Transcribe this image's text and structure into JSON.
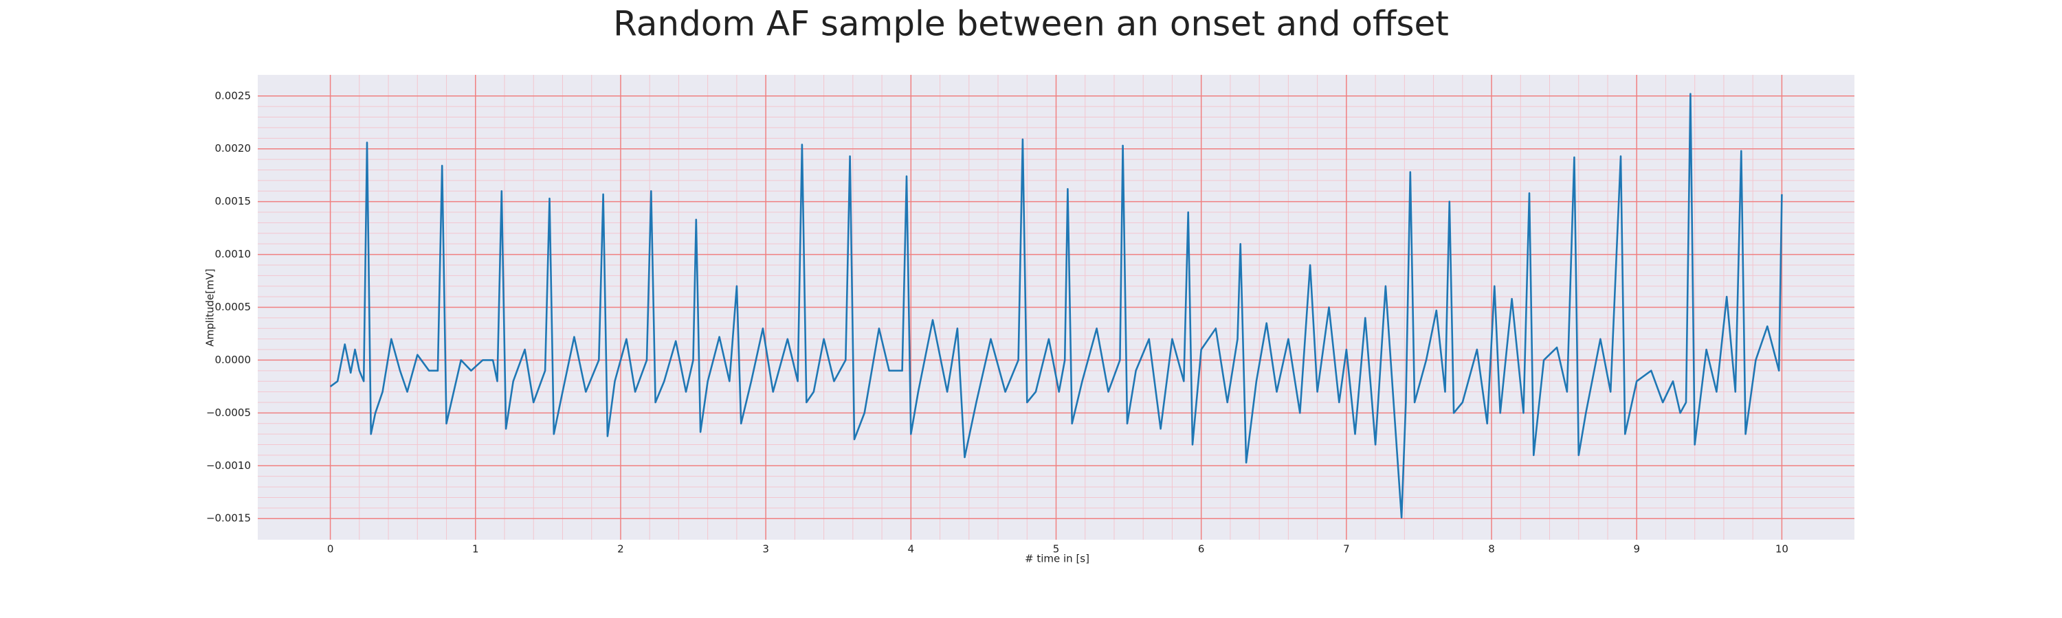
{
  "chart_data": {
    "type": "line",
    "title": "Random AF sample between an onset and offset",
    "xlabel": "# time in [s]",
    "ylabel": "Amplitude[mV]",
    "xlim": [
      -0.5,
      10.5
    ],
    "ylim": [
      -0.0017,
      0.0027
    ],
    "xticks": [
      0,
      1,
      2,
      3,
      4,
      5,
      6,
      7,
      8,
      9,
      10
    ],
    "yticks": [
      {
        "value": -0.0015,
        "label": "−0.0015"
      },
      {
        "value": -0.001,
        "label": "−0.0010"
      },
      {
        "value": -0.0005,
        "label": "−0.0005"
      },
      {
        "value": 0,
        "label": "0.0000"
      },
      {
        "value": 0.0005,
        "label": "0.0005"
      },
      {
        "value": 0.001,
        "label": "0.0010"
      },
      {
        "value": 0.0015,
        "label": "0.0015"
      },
      {
        "value": 0.002,
        "label": "0.0020"
      },
      {
        "value": 0.0025,
        "label": "0.0025"
      }
    ],
    "grid": true,
    "minor_grid": true,
    "background": "#eaeaf2",
    "grid_color": "#f08080",
    "minor_grid_color": "#f3c6cf",
    "series": [
      {
        "name": "AF",
        "color": "#1f77b4",
        "x": [
          0,
          0.05,
          0.1,
          0.14,
          0.17,
          0.2,
          0.23,
          0.253,
          0.28,
          0.31,
          0.36,
          0.42,
          0.48,
          0.53,
          0.6,
          0.68,
          0.74,
          0.77,
          0.8,
          0.85,
          0.9,
          0.97,
          1.05,
          1.12,
          1.15,
          1.18,
          1.21,
          1.26,
          1.34,
          1.4,
          1.48,
          1.51,
          1.54,
          1.6,
          1.68,
          1.76,
          1.85,
          1.88,
          1.91,
          1.96,
          2.04,
          2.1,
          2.18,
          2.21,
          2.24,
          2.3,
          2.38,
          2.45,
          2.5,
          2.52,
          2.55,
          2.6,
          2.68,
          2.75,
          2.8,
          2.83,
          2.9,
          2.98,
          3.05,
          3.15,
          3.22,
          3.25,
          3.28,
          3.33,
          3.4,
          3.47,
          3.55,
          3.58,
          3.61,
          3.68,
          3.78,
          3.85,
          3.94,
          3.97,
          4.0,
          4.05,
          4.15,
          4.25,
          4.32,
          4.37,
          4.45,
          4.55,
          4.65,
          4.74,
          4.77,
          4.8,
          4.86,
          4.95,
          5.02,
          5.06,
          5.08,
          5.11,
          5.18,
          5.28,
          5.36,
          5.44,
          5.46,
          5.49,
          5.55,
          5.64,
          5.72,
          5.8,
          5.88,
          5.91,
          5.94,
          6.0,
          6.1,
          6.18,
          6.25,
          6.27,
          6.31,
          6.38,
          6.45,
          6.52,
          6.6,
          6.68,
          6.75,
          6.8,
          6.88,
          6.95,
          7.0,
          7.06,
          7.13,
          7.2,
          7.27,
          7.33,
          7.38,
          7.41,
          7.44,
          7.47,
          7.55,
          7.62,
          7.68,
          7.71,
          7.74,
          7.8,
          7.9,
          7.97,
          8.02,
          8.06,
          8.14,
          8.22,
          8.26,
          8.29,
          8.36,
          8.45,
          8.52,
          8.57,
          8.6,
          8.65,
          8.75,
          8.82,
          8.89,
          8.92,
          9.0,
          9.1,
          9.18,
          9.25,
          9.3,
          9.34,
          9.37,
          9.4,
          9.48,
          9.55,
          9.62,
          9.68,
          9.72,
          9.75,
          9.82,
          9.9,
          9.98,
          10.0
        ],
        "values": [
          -0.00025,
          -0.0002,
          0.00015,
          -0.00012,
          0.0001,
          -0.0001,
          -0.0002,
          0.00206,
          -0.0007,
          -0.0005,
          -0.0003,
          0.0002,
          -0.0001,
          -0.0003,
          5e-05,
          -0.0001,
          -0.0001,
          0.00184,
          -0.0006,
          -0.0003,
          0,
          -0.0001,
          0,
          0,
          -0.0002,
          0.0016,
          -0.00065,
          -0.0002,
          0.0001,
          -0.0004,
          -0.0001,
          0.00153,
          -0.0007,
          -0.0003,
          0.00022,
          -0.0003,
          0,
          0.00157,
          -0.00072,
          -0.0002,
          0.0002,
          -0.0003,
          0,
          0.0016,
          -0.0004,
          -0.0002,
          0.00018,
          -0.0003,
          0,
          0.00133,
          -0.00068,
          -0.0002,
          0.00022,
          -0.0002,
          0.0007,
          -0.0006,
          -0.0002,
          0.0003,
          -0.0003,
          0.0002,
          -0.0002,
          0.00204,
          -0.0004,
          -0.0003,
          0.0002,
          -0.0002,
          0,
          0.00193,
          -0.00075,
          -0.0005,
          0.0003,
          -0.0001,
          -0.0001,
          0.00174,
          -0.0007,
          -0.0003,
          0.00038,
          -0.0003,
          0.0003,
          -0.00092,
          -0.0004,
          0.0002,
          -0.0003,
          0,
          0.00209,
          -0.0004,
          -0.0003,
          0.0002,
          -0.0003,
          0,
          0.00162,
          -0.0006,
          -0.0002,
          0.0003,
          -0.0003,
          0,
          0.00203,
          -0.0006,
          -0.0001,
          0.0002,
          -0.00065,
          0.0002,
          -0.0002,
          0.0014,
          -0.0008,
          0.0001,
          0.0003,
          -0.0004,
          0.0002,
          0.0011,
          -0.00097,
          -0.0002,
          0.00035,
          -0.0003,
          0.0002,
          -0.0005,
          0.0009,
          -0.0003,
          0.0005,
          -0.0004,
          0.0001,
          -0.0007,
          0.0004,
          -0.0008,
          0.0007,
          -0.0005,
          -0.00149,
          -0.0004,
          0.00178,
          -0.0004,
          0,
          0.00047,
          -0.0003,
          0.0015,
          -0.0005,
          -0.0004,
          0.0001,
          -0.0006,
          0.0007,
          -0.0005,
          0.00058,
          -0.0005,
          0.00158,
          -0.0009,
          0,
          0.00012,
          -0.0003,
          0.00192,
          -0.0009,
          -0.0005,
          0.0002,
          -0.0003,
          0.00193,
          -0.0007,
          -0.0002,
          -0.0001,
          -0.0004,
          -0.0002,
          -0.0005,
          -0.0004,
          0.00252,
          -0.0008,
          0.0001,
          -0.0003,
          0.0006,
          -0.0003,
          0.00198,
          -0.0007,
          0,
          0.00032,
          -0.0001,
          0.00157
        ]
      }
    ]
  }
}
